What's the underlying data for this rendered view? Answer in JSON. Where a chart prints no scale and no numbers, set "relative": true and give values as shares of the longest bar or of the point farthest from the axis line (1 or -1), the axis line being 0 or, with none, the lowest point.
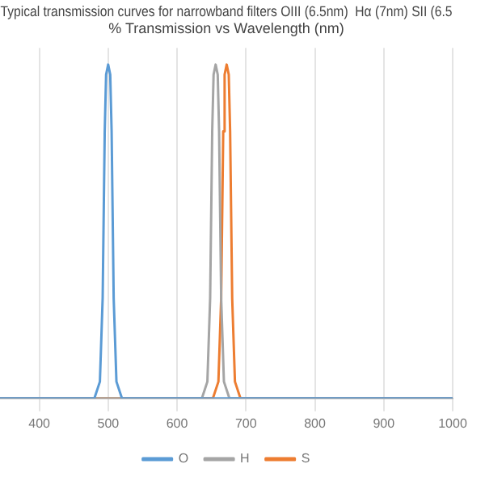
{
  "chart_data": {
    "type": "line",
    "title": "Typical transmission curves for narrowband filters OIII (6.5nm)  Hα (7nm) SII (6.5",
    "subtitle": "% Transmission vs Wavelength (nm)",
    "relative": true,
    "xlim": [
      343,
      1000
    ],
    "xticks": [
      400,
      500,
      600,
      700,
      800,
      900,
      1000
    ],
    "grid": "x",
    "legend": "bottom",
    "marker": "none",
    "series": [
      {
        "name": "O",
        "color": "#5b9bd5",
        "x": [
          343,
          480,
          488,
          492,
          495,
          497,
          500,
          503,
          505,
          508,
          512,
          520,
          1000
        ],
        "values": [
          0,
          0,
          0.05,
          0.3,
          0.8,
          0.97,
          1,
          0.97,
          0.8,
          0.3,
          0.05,
          0,
          0
        ]
      },
      {
        "name": "H",
        "color": "#a5a5a5",
        "x": [
          343,
          636,
          644,
          648,
          651,
          653,
          656,
          659,
          661,
          664,
          668,
          676,
          1000
        ],
        "values": [
          0,
          0,
          0.05,
          0.3,
          0.8,
          0.97,
          1,
          0.97,
          0.8,
          0.3,
          0.05,
          0,
          0
        ]
      },
      {
        "name": "S",
        "color": "#ed7d31",
        "x": [
          343,
          652,
          660,
          664,
          667,
          669,
          672,
          675,
          677,
          680,
          684,
          692,
          1000
        ],
        "values": [
          0,
          0,
          0.05,
          0.3,
          0.8,
          0.97,
          1,
          0.97,
          0.8,
          0.3,
          0.05,
          0,
          0
        ]
      }
    ]
  }
}
